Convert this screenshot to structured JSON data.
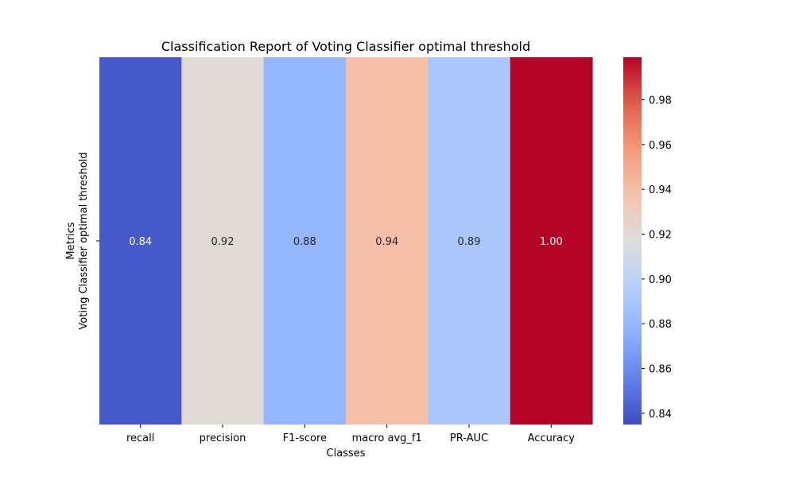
{
  "chart_data": {
    "type": "heatmap",
    "title": "Classification Report of Voting Classifier optimal threshold",
    "xlabel": "Classes",
    "ylabel_lines": [
      "Metrics",
      "Voting Classifier optimal threshold"
    ],
    "categories": [
      "recall",
      "precision",
      "F1-score",
      "macro avg_f1",
      "PR-AUC",
      "Accuracy"
    ],
    "values": [
      0.84,
      0.92,
      0.88,
      0.94,
      0.89,
      1.0
    ],
    "cell_labels": [
      "0.84",
      "0.92",
      "0.88",
      "0.94",
      "0.89",
      "1.00"
    ],
    "colormap": "coolwarm",
    "colorbar": {
      "vmin": 0.835,
      "vmax": 0.999,
      "ticks": [
        0.84,
        0.86,
        0.88,
        0.9,
        0.92,
        0.94,
        0.96,
        0.98
      ],
      "tick_labels": [
        "0.84",
        "0.86",
        "0.88",
        "0.90",
        "0.92",
        "0.94",
        "0.96",
        "0.98"
      ]
    },
    "grid": false,
    "legend": "colorbar-right"
  }
}
